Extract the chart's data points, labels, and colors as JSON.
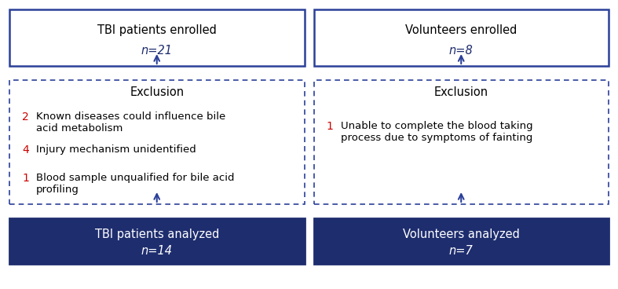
{
  "background_color": "#ffffff",
  "dark_blue": "#1e2d6e",
  "border_blue": "#2b4099",
  "arrow_blue": "#2b4099",
  "red": "#cc0000",
  "white": "#ffffff",
  "left_top_title": "TBI patients enrolled",
  "left_top_n": "n=21",
  "right_top_title": "Volunteers enrolled",
  "right_top_n": "n=8",
  "exclusion_title": "Exclusion",
  "left_exclusion_items": [
    {
      "num": "2",
      "text": "Known diseases could influence bile\nacid metabolism"
    },
    {
      "num": "4",
      "text": "Injury mechanism unidentified"
    },
    {
      "num": "1",
      "text": "Blood sample unqualified for bile acid\nprofiling"
    }
  ],
  "right_exclusion_items": [
    {
      "num": "1",
      "text": "Unable to complete the blood taking\nprocess due to symptoms of fainting"
    }
  ],
  "left_bottom_title": "TBI patients analyzed",
  "left_bottom_n": "n=14",
  "right_bottom_title": "Volunteers analyzed",
  "right_bottom_n": "n=7",
  "fig_width": 7.87,
  "fig_height": 3.68,
  "dpi": 100
}
